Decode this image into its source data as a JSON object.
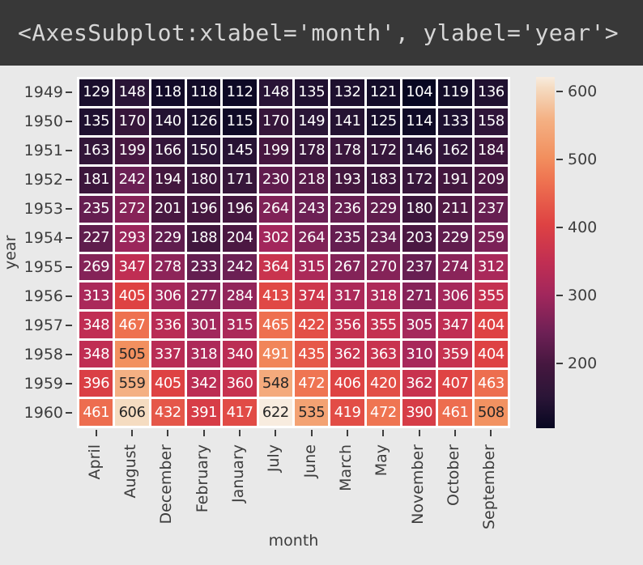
{
  "header": {
    "title": "<AxesSubplot:xlabel='month', ylabel='year'>"
  },
  "chart_data": {
    "type": "heatmap",
    "title": "",
    "xlabel": "month",
    "ylabel": "year",
    "rows": [
      "1949",
      "1950",
      "1951",
      "1952",
      "1953",
      "1954",
      "1955",
      "1956",
      "1957",
      "1958",
      "1959",
      "1960"
    ],
    "columns": [
      "April",
      "August",
      "December",
      "February",
      "January",
      "July",
      "June",
      "March",
      "May",
      "November",
      "October",
      "September"
    ],
    "values": [
      [
        129,
        148,
        118,
        118,
        112,
        148,
        135,
        132,
        121,
        104,
        119,
        136
      ],
      [
        135,
        170,
        140,
        126,
        115,
        170,
        149,
        141,
        125,
        114,
        133,
        158
      ],
      [
        163,
        199,
        166,
        150,
        145,
        199,
        178,
        178,
        172,
        146,
        162,
        184
      ],
      [
        181,
        242,
        194,
        180,
        171,
        230,
        218,
        193,
        183,
        172,
        191,
        209
      ],
      [
        235,
        272,
        201,
        196,
        196,
        264,
        243,
        236,
        229,
        180,
        211,
        237
      ],
      [
        227,
        293,
        229,
        188,
        204,
        302,
        264,
        235,
        234,
        203,
        229,
        259
      ],
      [
        269,
        347,
        278,
        233,
        242,
        364,
        315,
        267,
        270,
        237,
        274,
        312
      ],
      [
        313,
        405,
        306,
        277,
        284,
        413,
        374,
        317,
        318,
        271,
        306,
        355
      ],
      [
        348,
        467,
        336,
        301,
        315,
        465,
        422,
        356,
        355,
        305,
        347,
        404
      ],
      [
        348,
        505,
        337,
        318,
        340,
        491,
        435,
        362,
        363,
        310,
        359,
        404
      ],
      [
        396,
        559,
        405,
        342,
        360,
        548,
        472,
        406,
        420,
        362,
        407,
        463
      ],
      [
        461,
        606,
        432,
        391,
        417,
        622,
        535,
        419,
        472,
        390,
        461,
        508
      ]
    ],
    "vmin": 104,
    "vmax": 622,
    "colormap": "rocket",
    "colormap_anchors": [
      {
        "t": 0.0,
        "color": "#070721"
      },
      {
        "t": 0.09,
        "color": "#2b1537"
      },
      {
        "t": 0.18,
        "color": "#45173f"
      },
      {
        "t": 0.27,
        "color": "#6d2055"
      },
      {
        "t": 0.38,
        "color": "#a2275c"
      },
      {
        "t": 0.47,
        "color": "#c02e53"
      },
      {
        "t": 0.58,
        "color": "#de4243"
      },
      {
        "t": 0.7,
        "color": "#ee7150"
      },
      {
        "t": 0.77,
        "color": "#f28f5e"
      },
      {
        "t": 0.88,
        "color": "#f4b184"
      },
      {
        "t": 0.97,
        "color": "#f5dcc2"
      },
      {
        "t": 1.0,
        "color": "#f8ecdf"
      }
    ],
    "colorbar_ticks": [
      600,
      500,
      400,
      300,
      200
    ],
    "annotation": {
      "light_text": "#ffffff",
      "dark_text": "#262626",
      "dark_text_min_value": 500
    },
    "cell_border_color": "#ffffff",
    "legend_position": "right",
    "grid": false
  },
  "colors": {
    "figure_bg": "#e9e9e9",
    "header_bg": "#383838",
    "header_text": "#d6d6d6",
    "tick_text": "#3d3d3d"
  }
}
